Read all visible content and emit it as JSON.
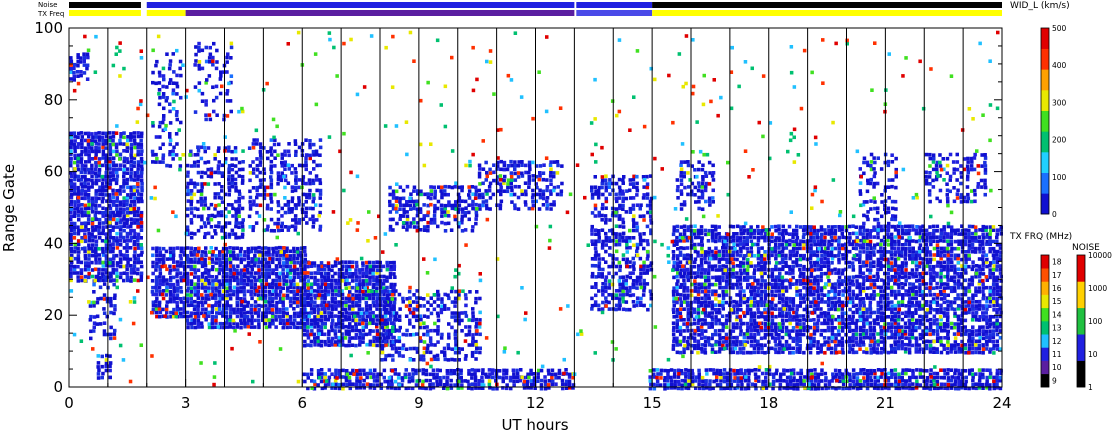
{
  "chart_data": {
    "type": "heatmap",
    "xlabel": "UT hours",
    "ylabel": "Range Gate",
    "xlim": [
      0,
      24
    ],
    "ylim": [
      0,
      100
    ],
    "x_ticks": [
      "0",
      "3",
      "6",
      "9",
      "12",
      "15",
      "18",
      "21",
      "24"
    ],
    "y_ticks": [
      "0",
      "20",
      "40",
      "60",
      "80",
      "100"
    ],
    "vertical_lines_ut": [
      1,
      2,
      3,
      4,
      5,
      6,
      7,
      8,
      9,
      10,
      11,
      12,
      13,
      14,
      15,
      16,
      17,
      18,
      19,
      20,
      21,
      22,
      23,
      24
    ],
    "status_bars": {
      "noise_label": "Noise",
      "txfreq_label": "TX Freq",
      "noise_segments": [
        {
          "start": 0,
          "end": 1.85,
          "color": "#000000"
        },
        {
          "start": 2.0,
          "end": 13.0,
          "color": "#2020e0"
        },
        {
          "start": 13.05,
          "end": 15.0,
          "color": "#2020e0"
        },
        {
          "start": 15.0,
          "end": 24,
          "color": "#000000"
        }
      ],
      "txfreq_segments": [
        {
          "start": 0,
          "end": 1.85,
          "color": "#ffff00"
        },
        {
          "start": 2.0,
          "end": 3.0,
          "color": "#ffff00"
        },
        {
          "start": 3.0,
          "end": 13.0,
          "color": "#5a1ea0"
        },
        {
          "start": 13.05,
          "end": 15.0,
          "color": "#4a4ae8"
        },
        {
          "start": 15.0,
          "end": 24,
          "color": "#ffff00"
        }
      ]
    },
    "colorbars": [
      {
        "title": "WID_L (km/s)",
        "ticks": [
          "0",
          "100",
          "200",
          "300",
          "400",
          "500"
        ],
        "colors": [
          "#1010d0",
          "#1a70ff",
          "#20d0ff",
          "#00c070",
          "#40e020",
          "#e8e800",
          "#ffa000",
          "#ff3000",
          "#e00000"
        ]
      },
      {
        "title": "TX FRQ (MHz)",
        "ticks": [
          "9",
          "10",
          "11",
          "12",
          "13",
          "14",
          "15",
          "16",
          "17",
          "18"
        ],
        "colors": [
          "#000000",
          "#5a1ea0",
          "#2020e0",
          "#20c0ff",
          "#00c070",
          "#40e020",
          "#e8e800",
          "#ffb000",
          "#ff5000",
          "#e00000"
        ]
      },
      {
        "title": "NOISE",
        "ticks": [
          "1",
          "10",
          "100",
          "1000",
          "10000"
        ],
        "colors": [
          "#000000",
          "#2020e0",
          "#20c040",
          "#ffd000",
          "#e00000"
        ]
      }
    ],
    "echo_regions": [
      {
        "t0": 0.0,
        "t1": 1.9,
        "g0": 30,
        "g1": 72,
        "density": 0.85
      },
      {
        "t0": 0.0,
        "t1": 0.5,
        "g0": 86,
        "g1": 94,
        "density": 0.7
      },
      {
        "t0": 0.5,
        "t1": 1.2,
        "g0": 14,
        "g1": 32,
        "density": 0.35
      },
      {
        "t0": 0.7,
        "t1": 1.1,
        "g0": 3,
        "g1": 10,
        "density": 0.6
      },
      {
        "t0": 2.1,
        "t1": 3.0,
        "g0": 20,
        "g1": 40,
        "density": 0.8
      },
      {
        "t0": 3.0,
        "t1": 6.1,
        "g0": 17,
        "g1": 40,
        "density": 0.9
      },
      {
        "t0": 3.0,
        "t1": 4.5,
        "g0": 42,
        "g1": 68,
        "density": 0.5
      },
      {
        "t0": 4.6,
        "t1": 6.5,
        "g0": 44,
        "g1": 70,
        "density": 0.45
      },
      {
        "t0": 2.1,
        "t1": 2.9,
        "g0": 62,
        "g1": 95,
        "density": 0.3
      },
      {
        "t0": 3.2,
        "t1": 4.2,
        "g0": 75,
        "g1": 98,
        "density": 0.3
      },
      {
        "t0": 6.0,
        "t1": 8.4,
        "g0": 12,
        "g1": 36,
        "density": 0.85
      },
      {
        "t0": 8.0,
        "t1": 10.6,
        "g0": 8,
        "g1": 28,
        "density": 0.4
      },
      {
        "t0": 8.2,
        "t1": 10.5,
        "g0": 44,
        "g1": 57,
        "density": 0.55
      },
      {
        "t0": 10.5,
        "t1": 12.7,
        "g0": 50,
        "g1": 64,
        "density": 0.5
      },
      {
        "t0": 6.0,
        "t1": 13.0,
        "g0": 0,
        "g1": 6,
        "density": 0.7
      },
      {
        "t0": 13.4,
        "t1": 15.0,
        "g0": 22,
        "g1": 60,
        "density": 0.55
      },
      {
        "t0": 14.9,
        "t1": 24.0,
        "g0": 0,
        "g1": 6,
        "density": 0.8
      },
      {
        "t0": 15.5,
        "t1": 24.0,
        "g0": 10,
        "g1": 46,
        "density": 0.8
      },
      {
        "t0": 15.6,
        "t1": 16.6,
        "g0": 50,
        "g1": 64,
        "density": 0.5
      },
      {
        "t0": 20.3,
        "t1": 21.3,
        "g0": 44,
        "g1": 66,
        "density": 0.35
      },
      {
        "t0": 22.0,
        "t1": 23.6,
        "g0": 52,
        "g1": 66,
        "density": 0.45
      },
      {
        "t0": 0.0,
        "t1": 24.0,
        "g0": 0,
        "g1": 100,
        "density": 0.02
      }
    ]
  }
}
